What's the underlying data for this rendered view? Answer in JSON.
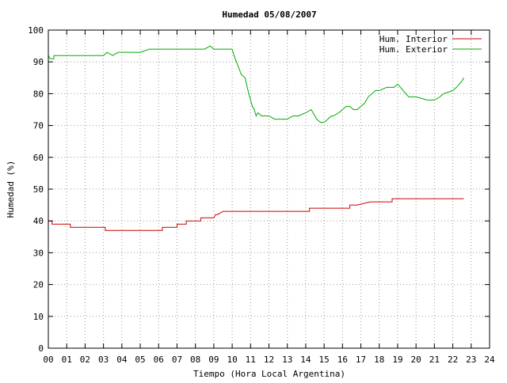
{
  "chart_data": {
    "type": "line",
    "title": "Humedad 05/08/2007",
    "xlabel": "Tiempo (Hora Local Argentina)",
    "ylabel": "Humedad (%)",
    "xlim": [
      0,
      24
    ],
    "ylim": [
      0,
      100
    ],
    "x_ticks": [
      "00",
      "01",
      "02",
      "03",
      "04",
      "05",
      "06",
      "07",
      "08",
      "09",
      "10",
      "11",
      "12",
      "13",
      "14",
      "15",
      "16",
      "17",
      "18",
      "19",
      "20",
      "21",
      "22",
      "23",
      "24"
    ],
    "y_ticks": [
      0,
      10,
      20,
      30,
      40,
      50,
      60,
      70,
      80,
      90,
      100
    ],
    "grid": true,
    "legend_position": "top-right",
    "series": [
      {
        "name": "Hum. Interior",
        "color": "#cc0000",
        "x": [
          0,
          0.2,
          0.2,
          1.2,
          1.2,
          2.3,
          2.3,
          3.1,
          3.1,
          4.0,
          5.0,
          5.5,
          5.5,
          6.2,
          6.2,
          6.8,
          7.0,
          7.0,
          7.5,
          7.5,
          8.3,
          8.3,
          9.0,
          9.1,
          9.2,
          9.2,
          9.5,
          10.0,
          11.0,
          12.0,
          12.3,
          12.3,
          13.0,
          14.0,
          14.2,
          14.2,
          15.0,
          15.5,
          15.5,
          16.0,
          16.3,
          16.4,
          16.4,
          16.8,
          16.8,
          17.5,
          18.0,
          18.5,
          18.7,
          18.7,
          19.0,
          20.0,
          21.0,
          21.5,
          22.0,
          22.5,
          22.6
        ],
        "y": [
          40,
          40,
          39,
          39,
          38,
          38,
          38,
          38,
          37,
          37,
          37,
          37,
          37,
          37,
          38,
          38,
          38,
          39,
          39,
          40,
          40,
          41,
          41,
          42,
          42,
          42,
          43,
          43,
          43,
          43,
          43,
          43,
          43,
          43,
          43,
          44,
          44,
          44,
          44,
          44,
          44,
          44,
          45,
          45,
          45,
          46,
          46,
          46,
          46,
          47,
          47,
          47,
          47,
          47,
          47,
          47,
          47
        ]
      },
      {
        "name": "Hum. Exterior",
        "color": "#00aa00",
        "x": [
          0,
          0.1,
          0.3,
          0.3,
          1.0,
          2.0,
          3.0,
          3.2,
          3.5,
          3.8,
          4.0,
          4.5,
          5.0,
          5.5,
          6.0,
          6.3,
          7.0,
          8.0,
          8.5,
          8.8,
          9.0,
          9.5,
          10.0,
          10.1,
          10.3,
          10.5,
          10.7,
          10.9,
          11.0,
          11.1,
          11.2,
          11.3,
          11.4,
          11.6,
          12.0,
          12.3,
          12.5,
          13.0,
          13.3,
          13.6,
          14.0,
          14.3,
          14.5,
          14.6,
          14.8,
          15.0,
          15.2,
          15.4,
          15.5,
          15.8,
          16.0,
          16.2,
          16.4,
          16.6,
          16.8,
          17.0,
          17.2,
          17.4,
          17.6,
          17.8,
          18.0,
          18.4,
          18.8,
          19.0,
          19.3,
          19.6,
          20.0,
          20.6,
          21.0,
          21.3,
          21.5,
          22.0,
          22.2,
          22.5,
          22.6
        ],
        "y": [
          92,
          91,
          91,
          92,
          92,
          92,
          92,
          93,
          92,
          93,
          93,
          93,
          93,
          94,
          94,
          94,
          94,
          94,
          94,
          95,
          94,
          94,
          94,
          92,
          89,
          86,
          85,
          80,
          78,
          76,
          75,
          73,
          74,
          73,
          73,
          72,
          72,
          72,
          73,
          73,
          74,
          75,
          73,
          72,
          71,
          71,
          72,
          73,
          73,
          74,
          75,
          76,
          76,
          75,
          75,
          76,
          77,
          79,
          80,
          81,
          81,
          82,
          82,
          83,
          81,
          79,
          79,
          78,
          78,
          79,
          80,
          81,
          82,
          84,
          85
        ]
      }
    ]
  }
}
